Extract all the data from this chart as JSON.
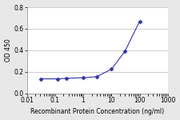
{
  "x": [
    0.03125,
    0.125,
    0.25,
    1.0,
    3.0,
    10.0,
    30.0,
    100.0
  ],
  "y": [
    0.135,
    0.135,
    0.14,
    0.145,
    0.155,
    0.225,
    0.39,
    0.67
  ],
  "line_color": "#3333aa",
  "marker": "D",
  "marker_size": 2.5,
  "marker_facecolor": "#3333aa",
  "xlabel": "Recombinant Protein Concentration (ng/ml)",
  "ylabel": "OD 450",
  "xlim": [
    0.01,
    1000
  ],
  "ylim": [
    0,
    0.8
  ],
  "yticks": [
    0,
    0.2,
    0.4,
    0.6,
    0.8
  ],
  "xtick_vals": [
    0.01,
    0.1,
    1,
    10,
    100,
    1000
  ],
  "xtick_labels": [
    "0.01",
    "0.1",
    "1",
    "10",
    "100",
    "1000"
  ],
  "background_color": "#e8e8e8",
  "plot_bg_color": "#ffffff",
  "grid_color": "#bbbbbb",
  "xlabel_fontsize": 5.5,
  "ylabel_fontsize": 5.5,
  "tick_fontsize": 5.5
}
